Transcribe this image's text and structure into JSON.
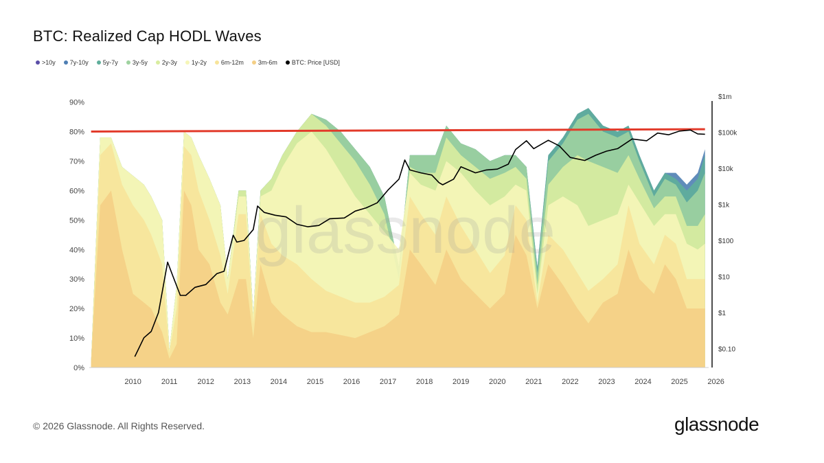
{
  "title": "BTC: Realized Cap HODL Waves",
  "legend": [
    {
      "label": ">10y",
      "color": "#5b4ea8"
    },
    {
      "label": "7y-10y",
      "color": "#4f7fb3"
    },
    {
      "label": "5y-7y",
      "color": "#5fae9b"
    },
    {
      "label": "3y-5y",
      "color": "#9fd2a0"
    },
    {
      "label": "2y-3y",
      "color": "#d9eda0"
    },
    {
      "label": "1y-2y",
      "color": "#f6f6b8"
    },
    {
      "label": "6m-12m",
      "color": "#f7e49a"
    },
    {
      "label": "3m-6m",
      "color": "#f4cf86"
    },
    {
      "label": "BTC: Price [USD]",
      "color": "#000000"
    }
  ],
  "watermark": "glassnode",
  "footer": {
    "copyright": "© 2026 Glassnode. All Rights Reserved.",
    "logo": "glassnode"
  },
  "chart_data": {
    "type": "area",
    "title": "BTC: Realized Cap HODL Waves",
    "xlabel": "",
    "ylabel": "",
    "x_ticks": [
      "2010",
      "2011",
      "2012",
      "2013",
      "2014",
      "2015",
      "2016",
      "2017",
      "2018",
      "2019",
      "2020",
      "2021",
      "2022",
      "2023",
      "2024",
      "2025",
      "2026"
    ],
    "y_ticks": [
      "0%",
      "10%",
      "20%",
      "30%",
      "40%",
      "50%",
      "60%",
      "70%",
      "80%",
      "90%"
    ],
    "y_right_ticks": [
      "$0.10",
      "$1",
      "$10",
      "$100",
      "$1k",
      "$10k",
      "$100k",
      "$1m"
    ],
    "xlim": [
      2009.3,
      2026.3
    ],
    "ylim": [
      0,
      92
    ],
    "y2_log_range": [
      0.03,
      1000000
    ],
    "grid": false,
    "legend_position": "top-left",
    "wave_series": [
      {
        "name": "3m-6m + shorter (cumulative top)",
        "color": "#f4cf86",
        "x": [
          2009.35,
          2009.6,
          2009.9,
          2010.2,
          2010.5,
          2010.8,
          2011.0,
          2011.3,
          2011.5,
          2011.7,
          2011.9,
          2012.1,
          2012.3,
          2012.6,
          2012.9,
          2013.1,
          2013.4,
          2013.6,
          2013.8,
          2014.0,
          2014.3,
          2014.6,
          2015.0,
          2015.4,
          2015.8,
          2016.2,
          2016.6,
          2017.0,
          2017.4,
          2017.8,
          2018.1,
          2018.4,
          2018.8,
          2019.1,
          2019.5,
          2019.9,
          2020.3,
          2020.7,
          2021.0,
          2021.3,
          2021.6,
          2021.9,
          2022.3,
          2022.7,
          2023.0,
          2023.4,
          2023.8,
          2024.1,
          2024.4,
          2024.8,
          2025.1,
          2025.4,
          2025.7,
          2026.0,
          2026.2
        ],
        "values": [
          2,
          55,
          60,
          40,
          25,
          22,
          20,
          12,
          3,
          8,
          60,
          55,
          40,
          35,
          22,
          18,
          30,
          30,
          10,
          35,
          22,
          18,
          14,
          12,
          12,
          11,
          10,
          12,
          14,
          18,
          40,
          35,
          28,
          40,
          30,
          25,
          20,
          25,
          45,
          38,
          20,
          35,
          28,
          20,
          15,
          22,
          25,
          40,
          30,
          25,
          35,
          30,
          20,
          20,
          20
        ]
      },
      {
        "name": "6m-12m (cumulative top)",
        "color": "#f7e49a",
        "x": [
          2009.35,
          2009.6,
          2009.9,
          2010.2,
          2010.5,
          2010.8,
          2011.0,
          2011.3,
          2011.5,
          2011.7,
          2011.9,
          2012.1,
          2012.3,
          2012.6,
          2012.9,
          2013.1,
          2013.4,
          2013.6,
          2013.8,
          2014.0,
          2014.3,
          2014.6,
          2015.0,
          2015.4,
          2015.8,
          2016.2,
          2016.6,
          2017.0,
          2017.4,
          2017.8,
          2018.1,
          2018.4,
          2018.8,
          2019.1,
          2019.5,
          2019.9,
          2020.3,
          2020.7,
          2021.0,
          2021.3,
          2021.6,
          2021.9,
          2022.3,
          2022.7,
          2023.0,
          2023.4,
          2023.8,
          2024.1,
          2024.4,
          2024.8,
          2025.1,
          2025.4,
          2025.7,
          2026.0,
          2026.2
        ],
        "values": [
          2,
          72,
          76,
          62,
          55,
          50,
          45,
          35,
          5,
          20,
          75,
          72,
          60,
          50,
          38,
          25,
          52,
          52,
          15,
          52,
          42,
          38,
          35,
          30,
          26,
          24,
          22,
          22,
          24,
          28,
          58,
          52,
          45,
          58,
          48,
          40,
          32,
          38,
          55,
          50,
          22,
          45,
          40,
          32,
          26,
          30,
          35,
          55,
          42,
          35,
          45,
          42,
          30,
          30,
          30
        ]
      },
      {
        "name": "1y-2y (cumulative top)",
        "color": "#f6f6b8",
        "x": [
          2009.35,
          2009.6,
          2009.9,
          2010.2,
          2010.5,
          2010.8,
          2011.0,
          2011.3,
          2011.5,
          2011.7,
          2011.9,
          2012.1,
          2012.3,
          2012.6,
          2012.9,
          2013.1,
          2013.4,
          2013.6,
          2013.8,
          2014.0,
          2014.3,
          2014.6,
          2015.0,
          2015.4,
          2015.8,
          2016.2,
          2016.6,
          2017.0,
          2017.4,
          2017.8,
          2018.1,
          2018.4,
          2018.8,
          2019.1,
          2019.5,
          2019.9,
          2020.3,
          2020.7,
          2021.0,
          2021.3,
          2021.6,
          2021.9,
          2022.3,
          2022.7,
          2023.0,
          2023.4,
          2023.8,
          2024.1,
          2024.4,
          2024.8,
          2025.1,
          2025.4,
          2025.7,
          2026.0,
          2026.2
        ],
        "values": [
          2,
          78,
          78,
          68,
          65,
          62,
          58,
          50,
          6,
          28,
          80,
          78,
          72,
          64,
          55,
          30,
          58,
          58,
          18,
          58,
          60,
          68,
          76,
          80,
          74,
          66,
          58,
          52,
          46,
          40,
          66,
          62,
          60,
          70,
          66,
          60,
          55,
          58,
          62,
          60,
          25,
          55,
          58,
          55,
          48,
          50,
          52,
          62,
          56,
          48,
          52,
          52,
          42,
          40,
          42
        ]
      },
      {
        "name": "2y-3y (cumulative top)",
        "color": "#d9eda0",
        "x": [
          2009.35,
          2009.6,
          2009.9,
          2010.2,
          2010.5,
          2010.8,
          2011.0,
          2011.3,
          2011.5,
          2011.7,
          2011.9,
          2012.1,
          2012.3,
          2012.6,
          2012.9,
          2013.1,
          2013.4,
          2013.6,
          2013.8,
          2014.0,
          2014.3,
          2014.6,
          2015.0,
          2015.4,
          2015.8,
          2016.2,
          2016.6,
          2017.0,
          2017.4,
          2017.8,
          2018.1,
          2018.4,
          2018.8,
          2019.1,
          2019.5,
          2019.9,
          2020.3,
          2020.7,
          2021.0,
          2021.3,
          2021.6,
          2021.9,
          2022.3,
          2022.7,
          2023.0,
          2023.4,
          2023.8,
          2024.1,
          2024.4,
          2024.8,
          2025.1,
          2025.4,
          2025.7,
          2026.0,
          2026.2
        ],
        "values": [
          2,
          78,
          78,
          68,
          65,
          62,
          58,
          50,
          6,
          28,
          80,
          78,
          72,
          64,
          55,
          30,
          60,
          60,
          18,
          60,
          64,
          72,
          80,
          86,
          82,
          76,
          70,
          62,
          52,
          30,
          68,
          66,
          66,
          78,
          72,
          68,
          64,
          66,
          68,
          64,
          28,
          62,
          68,
          72,
          70,
          68,
          66,
          72,
          64,
          54,
          58,
          58,
          48,
          48,
          52
        ]
      },
      {
        "name": "3y-5y (cumulative top)",
        "color": "#9fd2a0",
        "x": [
          2009.35,
          2009.6,
          2009.9,
          2010.2,
          2010.5,
          2010.8,
          2011.0,
          2011.3,
          2011.5,
          2011.7,
          2011.9,
          2012.1,
          2012.3,
          2012.6,
          2012.9,
          2013.1,
          2013.4,
          2013.6,
          2013.8,
          2014.0,
          2014.3,
          2014.6,
          2015.0,
          2015.4,
          2015.8,
          2016.2,
          2016.6,
          2017.0,
          2017.4,
          2017.8,
          2018.1,
          2018.4,
          2018.8,
          2019.1,
          2019.5,
          2019.9,
          2020.3,
          2020.7,
          2021.0,
          2021.3,
          2021.6,
          2021.9,
          2022.3,
          2022.7,
          2023.0,
          2023.4,
          2023.8,
          2024.1,
          2024.4,
          2024.8,
          2025.1,
          2025.4,
          2025.7,
          2026.0,
          2026.2
        ],
        "values": [
          2,
          78,
          78,
          68,
          65,
          62,
          58,
          50,
          6,
          28,
          80,
          78,
          72,
          64,
          55,
          30,
          60,
          60,
          18,
          60,
          64,
          72,
          80,
          86,
          84,
          80,
          74,
          68,
          58,
          34,
          72,
          72,
          72,
          82,
          76,
          74,
          70,
          72,
          72,
          68,
          32,
          70,
          76,
          84,
          86,
          80,
          78,
          80,
          70,
          58,
          64,
          62,
          56,
          60,
          66
        ]
      },
      {
        "name": "5y-7y (cumulative top)",
        "color": "#5fae9b",
        "x": [
          2009.35,
          2009.6,
          2009.9,
          2010.2,
          2010.5,
          2010.8,
          2011.0,
          2011.3,
          2011.5,
          2011.7,
          2011.9,
          2012.1,
          2012.3,
          2012.6,
          2012.9,
          2013.1,
          2013.4,
          2013.6,
          2013.8,
          2014.0,
          2014.3,
          2014.6,
          2015.0,
          2015.4,
          2015.8,
          2016.2,
          2016.6,
          2017.0,
          2017.4,
          2017.8,
          2018.1,
          2018.4,
          2018.8,
          2019.1,
          2019.5,
          2019.9,
          2020.3,
          2020.7,
          2021.0,
          2021.3,
          2021.6,
          2021.9,
          2022.3,
          2022.7,
          2023.0,
          2023.4,
          2023.8,
          2024.1,
          2024.4,
          2024.8,
          2025.1,
          2025.4,
          2025.7,
          2026.0,
          2026.2
        ],
        "values": [
          2,
          78,
          78,
          68,
          65,
          62,
          58,
          50,
          6,
          28,
          80,
          78,
          72,
          64,
          55,
          30,
          60,
          60,
          18,
          60,
          64,
          72,
          80,
          86,
          84,
          80,
          74,
          68,
          58,
          34,
          72,
          72,
          72,
          82,
          76,
          74,
          70,
          72,
          72,
          68,
          34,
          72,
          78,
          86,
          88,
          82,
          80,
          82,
          72,
          60,
          66,
          64,
          60,
          64,
          72
        ]
      },
      {
        "name": "7y-10y (cumulative top)",
        "color": "#4f7fb3",
        "x": [
          2009.35,
          2009.6,
          2009.9,
          2010.2,
          2010.5,
          2010.8,
          2011.0,
          2011.3,
          2011.5,
          2011.7,
          2011.9,
          2012.1,
          2012.3,
          2012.6,
          2012.9,
          2013.1,
          2013.4,
          2013.6,
          2013.8,
          2014.0,
          2014.3,
          2014.6,
          2015.0,
          2015.4,
          2015.8,
          2016.2,
          2016.6,
          2017.0,
          2017.4,
          2017.8,
          2018.1,
          2018.4,
          2018.8,
          2019.1,
          2019.5,
          2019.9,
          2020.3,
          2020.7,
          2021.0,
          2021.3,
          2021.6,
          2021.9,
          2022.3,
          2022.7,
          2023.0,
          2023.4,
          2023.8,
          2024.1,
          2024.4,
          2024.8,
          2025.1,
          2025.4,
          2025.7,
          2026.0,
          2026.2
        ],
        "values": [
          2,
          78,
          78,
          68,
          65,
          62,
          58,
          50,
          6,
          28,
          80,
          78,
          72,
          64,
          55,
          30,
          60,
          60,
          18,
          60,
          64,
          72,
          80,
          86,
          84,
          80,
          74,
          68,
          58,
          34,
          72,
          72,
          72,
          82,
          76,
          74,
          70,
          72,
          72,
          68,
          34,
          72,
          78,
          86,
          88,
          82,
          80,
          82,
          72,
          60,
          66,
          66,
          62,
          66,
          74
        ]
      }
    ],
    "reference_line": {
      "value": 80,
      "color": "#e23a2a"
    },
    "price_series": {
      "name": "BTC: Price [USD]",
      "color": "#000000",
      "x": [
        2010.55,
        2010.8,
        2011.0,
        2011.2,
        2011.45,
        2011.6,
        2011.8,
        2011.95,
        2012.2,
        2012.5,
        2012.8,
        2013.0,
        2013.25,
        2013.35,
        2013.55,
        2013.8,
        2013.92,
        2014.1,
        2014.4,
        2014.7,
        2015.0,
        2015.3,
        2015.6,
        2015.9,
        2016.3,
        2016.6,
        2016.9,
        2017.2,
        2017.5,
        2017.8,
        2017.96,
        2018.1,
        2018.4,
        2018.7,
        2018.9,
        2019.0,
        2019.3,
        2019.5,
        2019.9,
        2020.2,
        2020.5,
        2020.8,
        2021.0,
        2021.3,
        2021.5,
        2021.9,
        2022.2,
        2022.5,
        2022.9,
        2023.2,
        2023.5,
        2023.8,
        2024.2,
        2024.6,
        2024.9,
        2025.2,
        2025.5,
        2025.8,
        2026.0,
        2026.2
      ],
      "values": [
        0.06,
        0.2,
        0.3,
        1,
        25,
        10,
        3,
        3,
        5,
        6,
        12,
        14,
        140,
        90,
        100,
        200,
        900,
        600,
        500,
        450,
        280,
        240,
        260,
        400,
        420,
        650,
        800,
        1100,
        2500,
        5000,
        17000,
        9000,
        7500,
        6500,
        4000,
        3500,
        5000,
        11000,
        7500,
        9000,
        9500,
        13000,
        33000,
        58000,
        35000,
        60000,
        42000,
        20000,
        16500,
        23000,
        30000,
        35000,
        65000,
        58000,
        95000,
        85000,
        108000,
        115000,
        90000,
        88000
      ]
    }
  }
}
